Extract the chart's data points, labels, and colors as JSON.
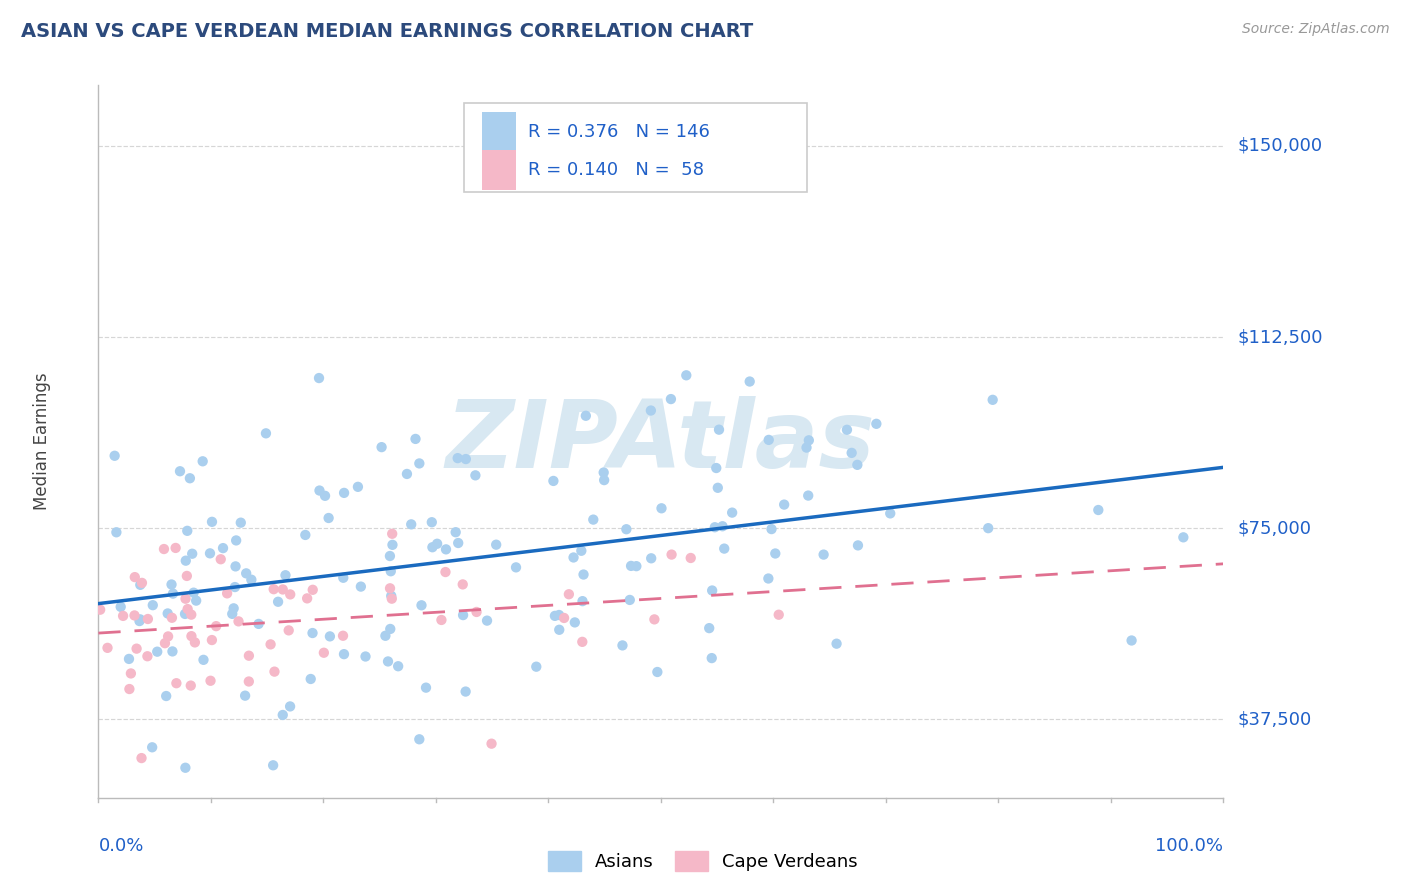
{
  "title": "ASIAN VS CAPE VERDEAN MEDIAN EARNINGS CORRELATION CHART",
  "source": "Source: ZipAtlas.com",
  "ylabel": "Median Earnings",
  "yticks": [
    37500,
    75000,
    112500,
    150000
  ],
  "ytick_labels": [
    "$37,500",
    "$75,000",
    "$112,500",
    "$150,000"
  ],
  "ylim": [
    22000,
    162000
  ],
  "xlim": [
    0.0,
    1.0
  ],
  "R_asian": 0.376,
  "N_asian": 146,
  "R_cape": 0.14,
  "N_cape": 58,
  "asian_color": "#aacfee",
  "cape_color": "#f5b8c8",
  "asian_line_color": "#1a6abf",
  "cape_line_color": "#e07090",
  "title_color": "#2c4a7c",
  "value_color": "#2060c8",
  "grid_color": "#cccccc",
  "background_color": "#ffffff",
  "watermark_text": "ZIPAtlas",
  "watermark_color": "#d8e8f2",
  "legend_label_color": "#2060c8"
}
